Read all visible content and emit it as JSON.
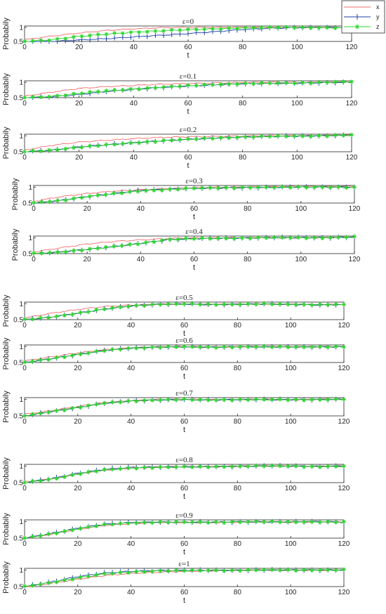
{
  "figure": {
    "legend": {
      "placement": "top-right",
      "entries": [
        {
          "name": "x",
          "color": "#f36b6b",
          "marker": "none"
        },
        {
          "name": "y",
          "color": "#1f3fa8",
          "marker": "plus"
        },
        {
          "name": "z",
          "color": "#2ad62a",
          "marker": "star"
        }
      ]
    }
  },
  "chart_data": [
    {
      "type": "line",
      "title": "ε=0",
      "xlabel": "t",
      "ylabel": "Probabily",
      "xlim": [
        0,
        120
      ],
      "ylim": [
        0.5,
        1.05
      ],
      "xticks": [
        0,
        20,
        40,
        60,
        80,
        100,
        120
      ],
      "yticks": [
        0.5,
        1
      ],
      "grid": false,
      "x": [
        0,
        10,
        20,
        30,
        40,
        50,
        60,
        70,
        80,
        90,
        100,
        110,
        120
      ],
      "series": [
        {
          "name": "x",
          "values": [
            0.56,
            0.69,
            0.8,
            0.89,
            0.95,
            0.99,
            1.0,
            1.0,
            1.0,
            1.0,
            1.0,
            1.0,
            0.99
          ]
        },
        {
          "name": "y",
          "values": [
            0.5,
            0.5,
            0.55,
            0.6,
            0.66,
            0.72,
            0.78,
            0.85,
            0.92,
            0.97,
            0.99,
            1.0,
            1.0
          ]
        },
        {
          "name": "z",
          "values": [
            0.5,
            0.56,
            0.68,
            0.76,
            0.83,
            0.88,
            0.92,
            0.95,
            0.98,
            1.0,
            1.0,
            0.99,
            0.98
          ]
        }
      ]
    },
    {
      "type": "line",
      "title": "ε=0.1",
      "xlabel": "t",
      "ylabel": "Probabily",
      "xlim": [
        0,
        120
      ],
      "ylim": [
        0.5,
        1.05
      ],
      "xticks": [
        0,
        20,
        40,
        60,
        80,
        100,
        120
      ],
      "yticks": [
        0.5,
        1
      ],
      "grid": false,
      "x": [
        0,
        10,
        20,
        30,
        40,
        50,
        60,
        70,
        80,
        90,
        100,
        110,
        120
      ],
      "series": [
        {
          "name": "x",
          "values": [
            0.55,
            0.68,
            0.8,
            0.86,
            0.9,
            0.94,
            0.96,
            0.98,
            0.99,
            1.0,
            1.0,
            1.0,
            1.0
          ]
        },
        {
          "name": "y",
          "values": [
            0.5,
            0.53,
            0.6,
            0.7,
            0.77,
            0.83,
            0.88,
            0.92,
            0.95,
            0.96,
            0.97,
            0.99,
            1.0
          ]
        },
        {
          "name": "z",
          "values": [
            0.5,
            0.54,
            0.64,
            0.72,
            0.78,
            0.84,
            0.89,
            0.93,
            0.96,
            0.97,
            0.98,
            1.0,
            1.02
          ]
        }
      ]
    },
    {
      "type": "line",
      "title": "ε=0.2",
      "xlabel": "t",
      "ylabel": "Probabily",
      "xlim": [
        0,
        120
      ],
      "ylim": [
        0.5,
        1.05
      ],
      "xticks": [
        0,
        20,
        40,
        60,
        80,
        100,
        120
      ],
      "yticks": [
        0.5,
        1
      ],
      "grid": false,
      "x": [
        0,
        10,
        20,
        30,
        40,
        50,
        60,
        70,
        80,
        90,
        100,
        110,
        120
      ],
      "series": [
        {
          "name": "x",
          "values": [
            0.55,
            0.7,
            0.8,
            0.86,
            0.91,
            0.95,
            0.97,
            0.98,
            0.99,
            1.0,
            1.0,
            1.01,
            1.02
          ]
        },
        {
          "name": "y",
          "values": [
            0.5,
            0.55,
            0.65,
            0.72,
            0.78,
            0.84,
            0.89,
            0.93,
            0.96,
            0.98,
            0.99,
            1.0,
            1.02
          ]
        },
        {
          "name": "z",
          "values": [
            0.5,
            0.55,
            0.64,
            0.71,
            0.78,
            0.84,
            0.89,
            0.93,
            0.96,
            0.98,
            0.99,
            1.0,
            1.02
          ]
        }
      ]
    },
    {
      "type": "line",
      "title": "ε=0.3",
      "xlabel": "t",
      "ylabel": "Probabily",
      "xlim": [
        0,
        120
      ],
      "ylim": [
        0.5,
        1.05
      ],
      "xticks": [
        0,
        20,
        40,
        60,
        80,
        100,
        120
      ],
      "yticks": [
        0.5,
        1
      ],
      "grid": false,
      "x": [
        0,
        10,
        20,
        30,
        40,
        50,
        60,
        70,
        80,
        90,
        100,
        110,
        120
      ],
      "series": [
        {
          "name": "x",
          "values": [
            0.55,
            0.7,
            0.8,
            0.87,
            0.92,
            0.95,
            0.98,
            1.0,
            1.0,
            1.01,
            1.02,
            1.02,
            1.02
          ]
        },
        {
          "name": "y",
          "values": [
            0.5,
            0.58,
            0.7,
            0.8,
            0.9,
            0.93,
            0.96,
            0.97,
            0.98,
            0.99,
            1.0,
            1.0,
            1.0
          ]
        },
        {
          "name": "z",
          "values": [
            0.5,
            0.58,
            0.7,
            0.79,
            0.88,
            0.92,
            0.96,
            0.98,
            0.99,
            0.99,
            1.0,
            1.0,
            0.98
          ]
        }
      ]
    },
    {
      "type": "line",
      "title": "ε=0.4",
      "xlabel": "t",
      "ylabel": "Probabily",
      "xlim": [
        0,
        120
      ],
      "ylim": [
        0.5,
        1.05
      ],
      "xticks": [
        0,
        20,
        40,
        60,
        80,
        100,
        120
      ],
      "yticks": [
        0.5,
        1
      ],
      "grid": false,
      "x": [
        0,
        10,
        20,
        30,
        40,
        50,
        60,
        70,
        80,
        90,
        100,
        110,
        120
      ],
      "series": [
        {
          "name": "x",
          "values": [
            0.55,
            0.68,
            0.8,
            0.88,
            0.93,
            0.97,
            0.99,
            1.0,
            1.0,
            1.0,
            1.0,
            1.0,
            1.02
          ]
        },
        {
          "name": "y",
          "values": [
            0.5,
            0.55,
            0.63,
            0.72,
            0.82,
            0.93,
            0.97,
            0.98,
            0.99,
            1.0,
            1.0,
            1.0,
            1.02
          ]
        },
        {
          "name": "z",
          "values": [
            0.5,
            0.55,
            0.63,
            0.72,
            0.82,
            0.94,
            0.97,
            0.98,
            0.99,
            1.0,
            1.0,
            1.0,
            1.02
          ]
        }
      ]
    },
    {
      "type": "line",
      "title": "ε=0.5",
      "xlabel": "t",
      "ylabel": "Probabily",
      "xlim": [
        0,
        120
      ],
      "ylim": [
        0.5,
        1.05
      ],
      "xticks": [
        0,
        20,
        40,
        60,
        80,
        100,
        120
      ],
      "yticks": [
        0.5,
        1
      ],
      "grid": false,
      "x": [
        0,
        10,
        20,
        30,
        40,
        50,
        60,
        70,
        80,
        90,
        100,
        110,
        120
      ],
      "series": [
        {
          "name": "x",
          "values": [
            0.55,
            0.7,
            0.82,
            0.91,
            0.96,
            0.98,
            0.99,
            0.98,
            0.98,
            0.99,
            0.98,
            0.97,
            0.98
          ]
        },
        {
          "name": "y",
          "values": [
            0.5,
            0.58,
            0.7,
            0.83,
            0.93,
            0.98,
            0.99,
            0.97,
            0.98,
            0.99,
            0.98,
            0.96,
            0.97
          ]
        },
        {
          "name": "z",
          "values": [
            0.5,
            0.58,
            0.7,
            0.83,
            0.93,
            0.98,
            0.99,
            0.98,
            0.98,
            0.99,
            0.98,
            0.97,
            0.97
          ]
        }
      ]
    },
    {
      "type": "line",
      "title": "ε=0.6",
      "xlabel": "t",
      "ylabel": "Probabily",
      "xlim": [
        0,
        120
      ],
      "ylim": [
        0.5,
        1.05
      ],
      "xticks": [
        0,
        20,
        40,
        60,
        80,
        100,
        120
      ],
      "yticks": [
        0.5,
        1
      ],
      "grid": false,
      "x": [
        0,
        10,
        20,
        30,
        40,
        50,
        60,
        70,
        80,
        90,
        100,
        110,
        120
      ],
      "series": [
        {
          "name": "x",
          "values": [
            0.55,
            0.68,
            0.8,
            0.9,
            0.96,
            0.99,
            1.0,
            0.99,
            0.99,
            1.0,
            0.99,
            0.99,
            1.0
          ]
        },
        {
          "name": "y",
          "values": [
            0.5,
            0.62,
            0.75,
            0.88,
            0.95,
            0.98,
            0.99,
            0.98,
            0.99,
            0.99,
            0.99,
            0.99,
            0.99
          ]
        },
        {
          "name": "z",
          "values": [
            0.5,
            0.62,
            0.75,
            0.87,
            0.95,
            0.98,
            0.99,
            0.98,
            0.99,
            0.99,
            0.99,
            0.99,
            0.99
          ]
        }
      ]
    },
    {
      "type": "line",
      "title": "ε=0.7",
      "xlabel": "t",
      "ylabel": "Probabily",
      "xlim": [
        0,
        120
      ],
      "ylim": [
        0.5,
        1.05
      ],
      "xticks": [
        0,
        20,
        40,
        60,
        80,
        100,
        120
      ],
      "yticks": [
        0.5,
        1
      ],
      "grid": false,
      "x": [
        0,
        10,
        20,
        30,
        40,
        50,
        60,
        70,
        80,
        90,
        100,
        110,
        120
      ],
      "series": [
        {
          "name": "x",
          "values": [
            0.55,
            0.66,
            0.78,
            0.9,
            0.96,
            0.99,
            1.0,
            0.99,
            0.99,
            1.0,
            0.99,
            1.0,
            1.0
          ]
        },
        {
          "name": "y",
          "values": [
            0.5,
            0.63,
            0.75,
            0.88,
            0.95,
            0.98,
            0.99,
            0.98,
            0.99,
            0.99,
            0.99,
            0.99,
            1.0
          ]
        },
        {
          "name": "z",
          "values": [
            0.5,
            0.63,
            0.75,
            0.88,
            0.95,
            0.98,
            0.99,
            0.98,
            0.99,
            0.99,
            0.99,
            0.99,
            1.0
          ]
        }
      ]
    },
    {
      "type": "line",
      "title": "ε=0.8",
      "xlabel": "t",
      "ylabel": "Probabily",
      "xlim": [
        0,
        120
      ],
      "ylim": [
        0.5,
        1.05
      ],
      "xticks": [
        0,
        20,
        40,
        60,
        80,
        100,
        120
      ],
      "yticks": [
        0.5,
        1
      ],
      "grid": false,
      "x": [
        0,
        10,
        20,
        30,
        40,
        50,
        60,
        70,
        80,
        90,
        100,
        110,
        120
      ],
      "series": [
        {
          "name": "x",
          "values": [
            0.52,
            0.62,
            0.76,
            0.88,
            0.94,
            0.97,
            0.98,
            0.98,
            0.99,
            1.0,
            1.0,
            0.99,
            1.0
          ]
        },
        {
          "name": "y",
          "values": [
            0.5,
            0.62,
            0.78,
            0.9,
            0.96,
            0.97,
            0.98,
            0.98,
            0.99,
            1.0,
            1.0,
            0.99,
            1.0
          ]
        },
        {
          "name": "z",
          "values": [
            0.5,
            0.6,
            0.76,
            0.88,
            0.94,
            0.96,
            0.97,
            0.98,
            0.99,
            1.0,
            1.0,
            0.98,
            0.99
          ]
        }
      ]
    },
    {
      "type": "line",
      "title": "ε=0.9",
      "xlabel": "t",
      "ylabel": "Probabily",
      "xlim": [
        0,
        120
      ],
      "ylim": [
        0.5,
        1.05
      ],
      "xticks": [
        0,
        20,
        40,
        60,
        80,
        100,
        120
      ],
      "yticks": [
        0.5,
        1
      ],
      "grid": false,
      "x": [
        0,
        10,
        20,
        30,
        40,
        50,
        60,
        70,
        80,
        90,
        100,
        110,
        120
      ],
      "series": [
        {
          "name": "x",
          "values": [
            0.5,
            0.62,
            0.76,
            0.88,
            0.94,
            0.97,
            0.97,
            0.97,
            0.98,
            0.99,
            0.98,
            0.99,
            0.98
          ]
        },
        {
          "name": "y",
          "values": [
            0.5,
            0.64,
            0.8,
            0.92,
            0.97,
            0.98,
            0.98,
            0.98,
            0.99,
            0.99,
            0.99,
            1.0,
            0.98
          ]
        },
        {
          "name": "z",
          "values": [
            0.5,
            0.63,
            0.78,
            0.9,
            0.96,
            0.98,
            0.98,
            0.98,
            0.99,
            0.99,
            0.99,
            0.99,
            0.98
          ]
        }
      ]
    },
    {
      "type": "line",
      "title": "ε=1",
      "xlabel": "t",
      "ylabel": "Probabily",
      "xlim": [
        0,
        120
      ],
      "ylim": [
        0.5,
        1.05
      ],
      "xticks": [
        0,
        20,
        40,
        60,
        80,
        100,
        120
      ],
      "yticks": [
        0.5,
        1
      ],
      "grid": false,
      "x": [
        0,
        10,
        20,
        30,
        40,
        50,
        60,
        70,
        80,
        90,
        100,
        110,
        120
      ],
      "series": [
        {
          "name": "x",
          "values": [
            0.5,
            0.6,
            0.72,
            0.83,
            0.9,
            0.93,
            0.96,
            0.98,
            0.99,
            1.0,
            1.0,
            0.99,
            1.0
          ]
        },
        {
          "name": "y",
          "values": [
            0.5,
            0.64,
            0.8,
            0.91,
            0.96,
            0.98,
            0.99,
            0.99,
            0.99,
            1.0,
            1.0,
            1.0,
            1.0
          ]
        },
        {
          "name": "z",
          "values": [
            0.5,
            0.62,
            0.76,
            0.88,
            0.94,
            0.97,
            0.98,
            0.99,
            0.99,
            1.0,
            1.0,
            1.0,
            1.0
          ]
        }
      ]
    }
  ]
}
